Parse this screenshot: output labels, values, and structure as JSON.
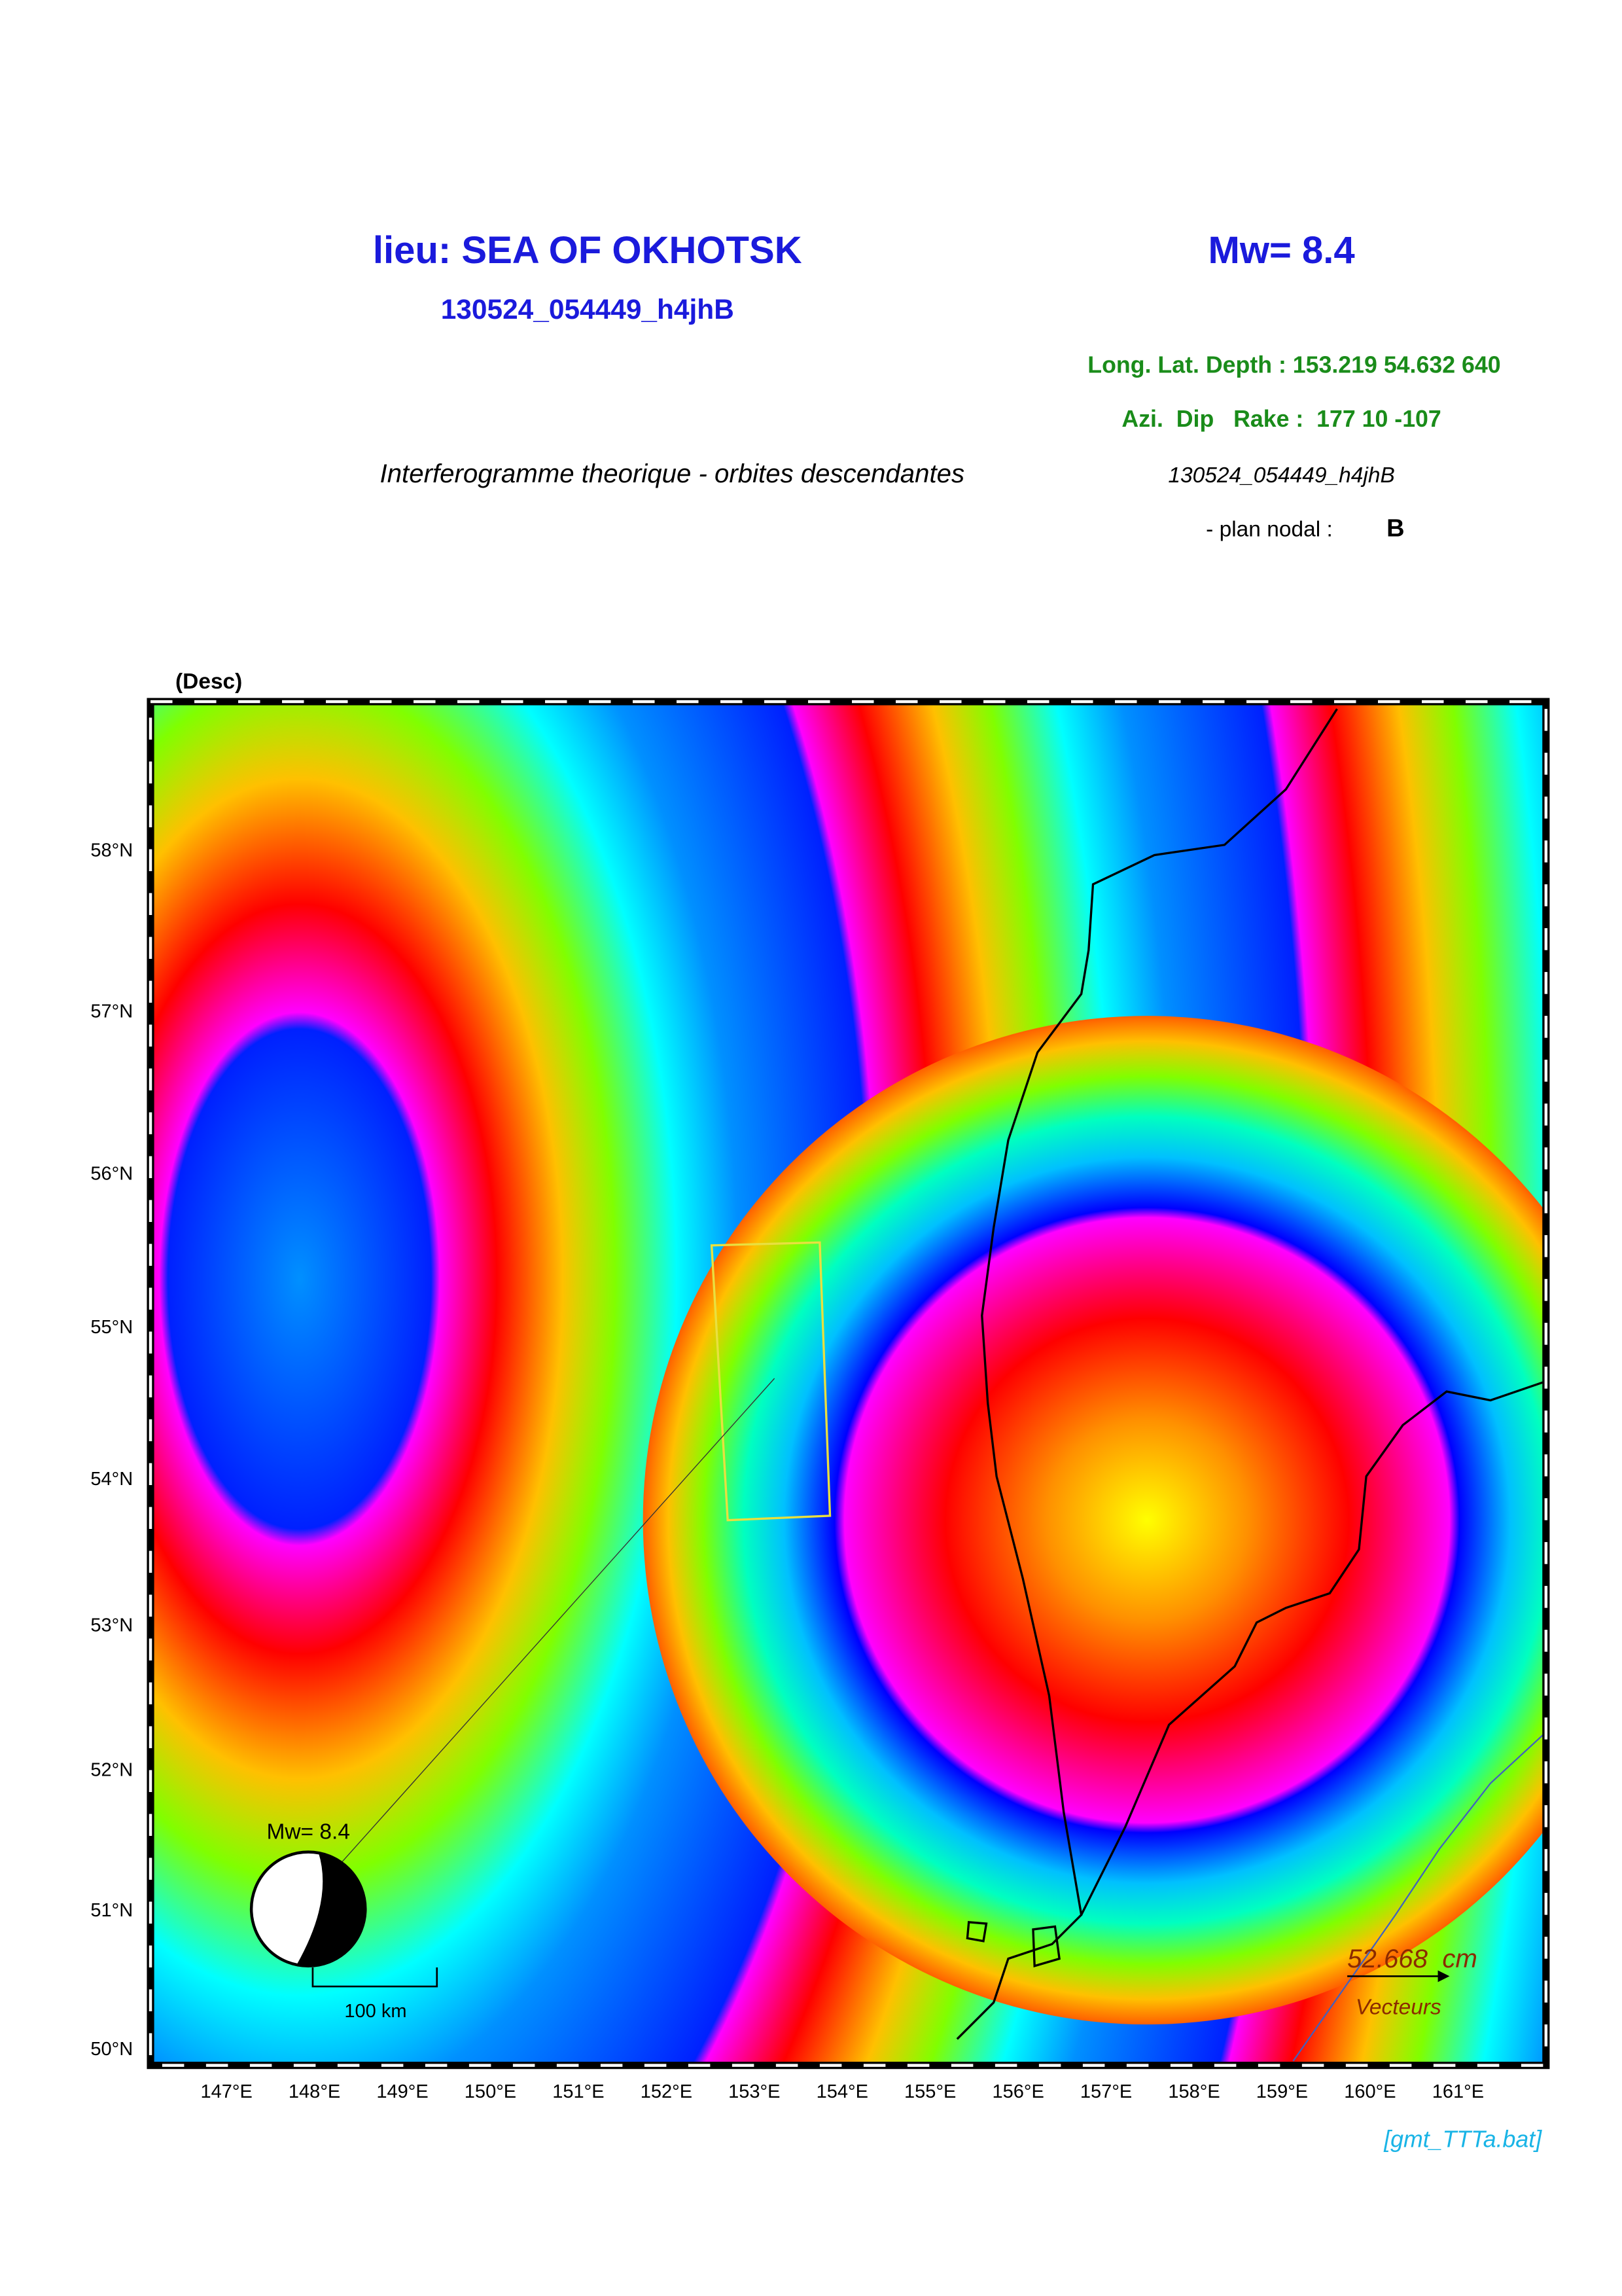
{
  "header": {
    "location": "lieu: SEA OF OKHOTSK",
    "magnitude": "Mw= 8.4",
    "event_id": "130524_054449_h4jhB",
    "long_lat_depth": "Long. Lat. Depth : 153.219 54.632 640",
    "azi_dip_rake": "Azi.  Dip   Rake :  177 10 -107",
    "description": "Interferogramme theorique - orbites descendantes",
    "event_id_2": "130524_054449_h4jhB",
    "nodal_plane_label": "- plan nodal :",
    "nodal_plane": "B"
  },
  "map": {
    "orbit": "(Desc)",
    "lat_labels": [
      "50°N",
      "51°N",
      "52°N",
      "53°N",
      "54°N",
      "55°N",
      "56°N",
      "57°N",
      "58°N"
    ],
    "lon_labels": [
      "147°E",
      "148°E",
      "149°E",
      "150°E",
      "151°E",
      "152°E",
      "153°E",
      "154°E",
      "155°E",
      "156°E",
      "157°E",
      "158°E",
      "159°E",
      "160°E",
      "161°E"
    ],
    "beachball_label": "Mw= 8.4",
    "scale_label": "100 km",
    "vector_value": "52.668  cm",
    "vector_label": "Vecteurs"
  },
  "footer": {
    "script": "[gmt_TTTa.bat]"
  }
}
